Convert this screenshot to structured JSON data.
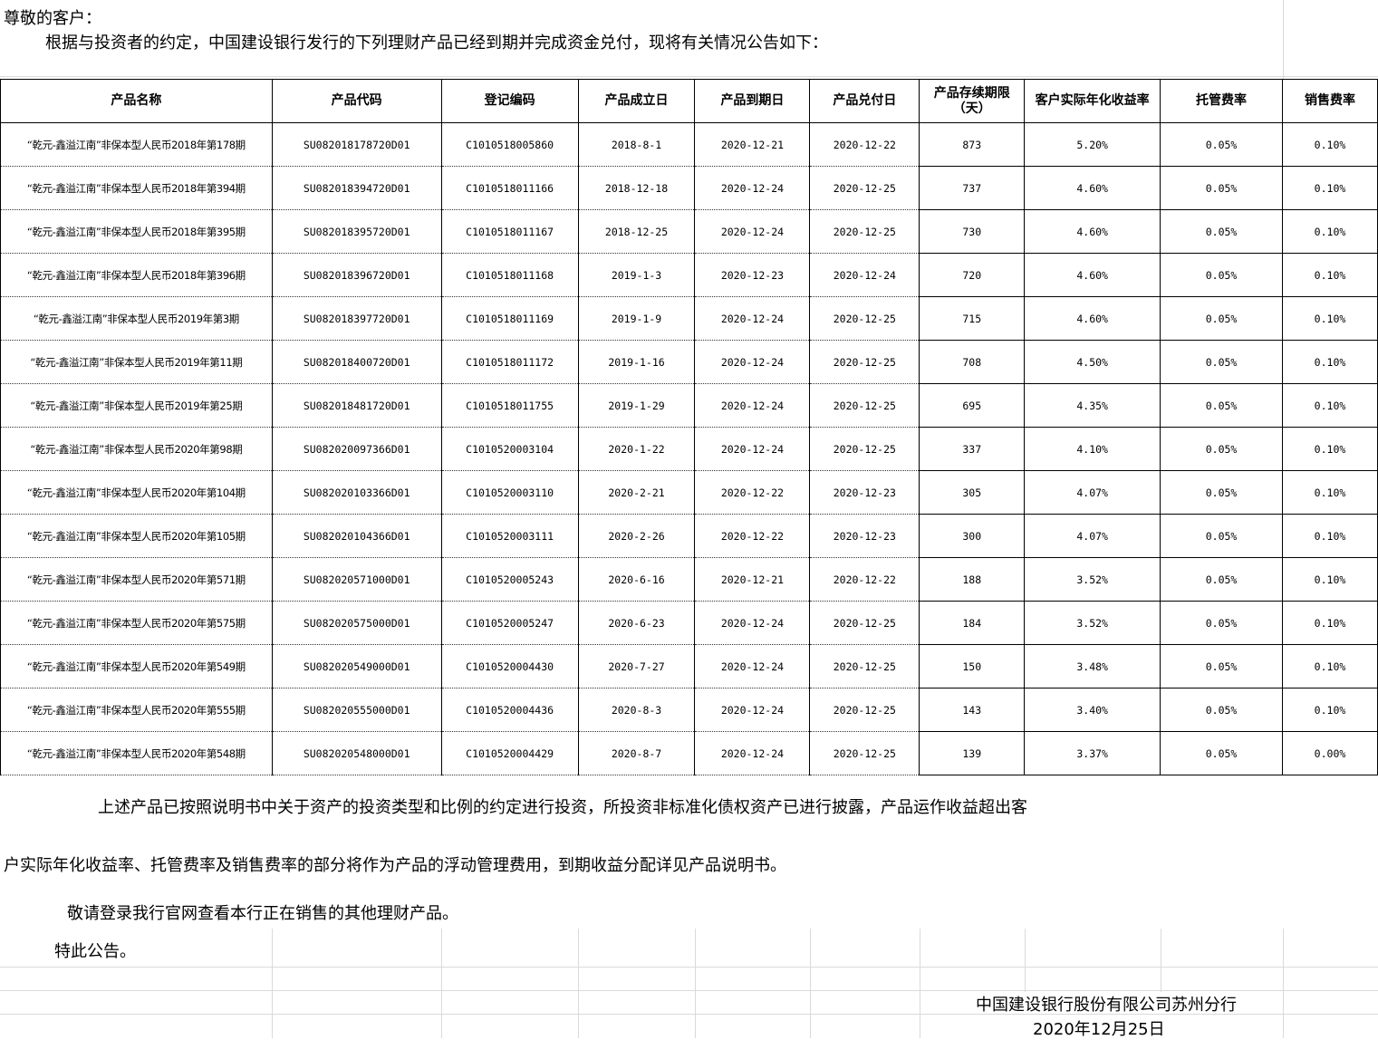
{
  "greeting": "尊敬的客户：",
  "intro": "根据与投资者的约定，中国建设银行发行的下列理财产品已经到期并完成资金兑付，现将有关情况公告如下：",
  "table": {
    "headers": [
      "产品名称",
      "产品代码",
      "登记编码",
      "产品成立日",
      "产品到期日",
      "产品兑付日",
      "产品存续期限（天）",
      "客户实际年化收益率",
      "托管费率",
      "销售费率"
    ],
    "rows": [
      [
        "“乾元-鑫溢江南”非保本型人民币2018年第178期",
        "SU082018178720D01",
        "C1010518005860",
        "2018-8-1",
        "2020-12-21",
        "2020-12-22",
        "873",
        "5.20%",
        "0.05%",
        "0.10%"
      ],
      [
        "“乾元-鑫溢江南”非保本型人民币2018年第394期",
        "SU082018394720D01",
        "C1010518011166",
        "2018-12-18",
        "2020-12-24",
        "2020-12-25",
        "737",
        "4.60%",
        "0.05%",
        "0.10%"
      ],
      [
        "“乾元-鑫溢江南”非保本型人民币2018年第395期",
        "SU082018395720D01",
        "C1010518011167",
        "2018-12-25",
        "2020-12-24",
        "2020-12-25",
        "730",
        "4.60%",
        "0.05%",
        "0.10%"
      ],
      [
        "“乾元-鑫溢江南”非保本型人民币2018年第396期",
        "SU082018396720D01",
        "C1010518011168",
        "2019-1-3",
        "2020-12-23",
        "2020-12-24",
        "720",
        "4.60%",
        "0.05%",
        "0.10%"
      ],
      [
        "“乾元-鑫溢江南”非保本型人民币2019年第3期",
        "SU082018397720D01",
        "C1010518011169",
        "2019-1-9",
        "2020-12-24",
        "2020-12-25",
        "715",
        "4.60%",
        "0.05%",
        "0.10%"
      ],
      [
        "“乾元-鑫溢江南”非保本型人民币2019年第11期",
        "SU082018400720D01",
        "C1010518011172",
        "2019-1-16",
        "2020-12-24",
        "2020-12-25",
        "708",
        "4.50%",
        "0.05%",
        "0.10%"
      ],
      [
        "“乾元-鑫溢江南”非保本型人民币2019年第25期",
        "SU082018481720D01",
        "C1010518011755",
        "2019-1-29",
        "2020-12-24",
        "2020-12-25",
        "695",
        "4.35%",
        "0.05%",
        "0.10%"
      ],
      [
        "“乾元-鑫溢江南”非保本型人民币2020年第98期",
        "SU082020097366D01",
        "C1010520003104",
        "2020-1-22",
        "2020-12-24",
        "2020-12-25",
        "337",
        "4.10%",
        "0.05%",
        "0.10%"
      ],
      [
        "“乾元-鑫溢江南”非保本型人民币2020年第104期",
        "SU082020103366D01",
        "C1010520003110",
        "2020-2-21",
        "2020-12-22",
        "2020-12-23",
        "305",
        "4.07%",
        "0.05%",
        "0.10%"
      ],
      [
        "“乾元-鑫溢江南”非保本型人民币2020年第105期",
        "SU082020104366D01",
        "C1010520003111",
        "2020-2-26",
        "2020-12-22",
        "2020-12-23",
        "300",
        "4.07%",
        "0.05%",
        "0.10%"
      ],
      [
        "“乾元-鑫溢江南”非保本型人民币2020年第571期",
        "SU082020571000D01",
        "C1010520005243",
        "2020-6-16",
        "2020-12-21",
        "2020-12-22",
        "188",
        "3.52%",
        "0.05%",
        "0.10%"
      ],
      [
        "“乾元-鑫溢江南”非保本型人民币2020年第575期",
        "SU082020575000D01",
        "C1010520005247",
        "2020-6-23",
        "2020-12-24",
        "2020-12-25",
        "184",
        "3.52%",
        "0.05%",
        "0.10%"
      ],
      [
        "“乾元-鑫溢江南”非保本型人民币2020年第549期",
        "SU082020549000D01",
        "C1010520004430",
        "2020-7-27",
        "2020-12-24",
        "2020-12-25",
        "150",
        "3.48%",
        "0.05%",
        "0.10%"
      ],
      [
        "“乾元-鑫溢江南”非保本型人民币2020年第555期",
        "SU082020555000D01",
        "C1010520004436",
        "2020-8-3",
        "2020-12-24",
        "2020-12-25",
        "143",
        "3.40%",
        "0.05%",
        "0.10%"
      ],
      [
        "“乾元-鑫溢江南”非保本型人民币2020年第548期",
        "SU082020548000D01",
        "C1010520004429",
        "2020-8-7",
        "2020-12-24",
        "2020-12-25",
        "139",
        "3.37%",
        "0.05%",
        "0.00%"
      ]
    ]
  },
  "para1_line1": "上述产品已按照说明书中关于资产的投资类型和比例的约定进行投资，所投资非标准化债权资产已进行披露，产品运作收益超出客",
  "para1_line2": "户实际年化收益率、托管费率及销售费率的部分将作为产品的浮动管理费用，到期收益分配详见产品说明书。",
  "para2": "敬请登录我行官网查看本行正在销售的其他理财产品。",
  "closing": "特此公告。",
  "signature": "中国建设银行股份有限公司苏州分行",
  "date": "2020年12月25日"
}
